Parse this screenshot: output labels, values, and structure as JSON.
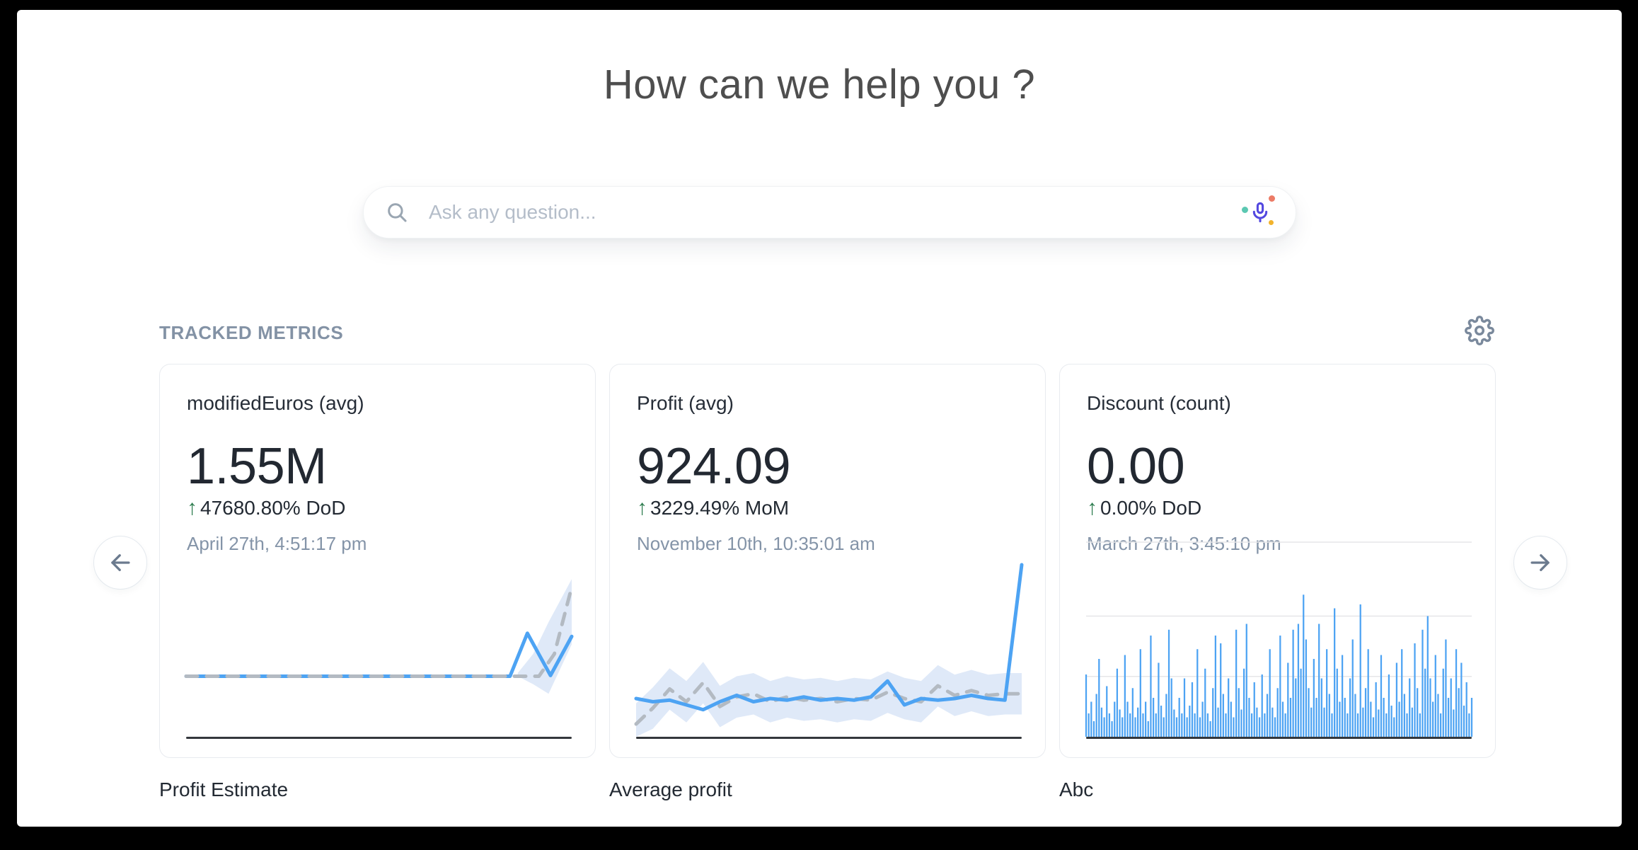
{
  "page": {
    "title": "How can we help you ?"
  },
  "search": {
    "placeholder": "Ask any question...",
    "search_icon": "magnifier",
    "mic_icon": "microphone"
  },
  "tracked_metrics": {
    "label": "TRACKED METRICS",
    "settings_icon": "gear"
  },
  "carousel": {
    "prev_icon": "arrow-left",
    "next_icon": "arrow-right"
  },
  "cards": [
    {
      "title": "modifiedEuros (avg)",
      "value": "1.55M",
      "delta_arrow": "↑",
      "delta": "47680.80% DoD",
      "timestamp": "April 27th, 4:51:17 pm",
      "caption": "Profit Estimate"
    },
    {
      "title": "Profit (avg)",
      "value": "924.09",
      "delta_arrow": "↑",
      "delta": "3229.49% MoM",
      "timestamp": "November 10th, 10:35:01 am",
      "caption": "Average profit"
    },
    {
      "title": "Discount (count)",
      "value": "0.00",
      "delta_arrow": "↑",
      "delta": "0.00% DoD",
      "timestamp": "March 27th, 3:45:10 pm",
      "caption": "Abc"
    }
  ],
  "colors": {
    "accent_blue": "#4da3f3",
    "forecast_gray": "#b3bac2",
    "band_blue": "#dfe9f8",
    "delta_green": "#2e7d4f",
    "axis_dark": "#33373c",
    "grid_gray": "#e6e6e8",
    "mic_purple": "#5348e0",
    "mic_dot_teal": "#5bc8b2",
    "mic_dot_red": "#ec7b66",
    "mic_dot_yellow": "#f2b32c"
  },
  "chart_data": [
    {
      "type": "line",
      "title": "modifiedEuros (avg) sparkline",
      "units": "relative height 0-1, no axis labels shown",
      "series": [
        {
          "name": "actual",
          "style": "solid",
          "color": "#4da3f3",
          "points": [
            [
              0,
              0.38
            ],
            [
              0.4,
              0.38
            ],
            [
              0.84,
              0.38
            ],
            [
              0.885,
              0.65
            ],
            [
              0.945,
              0.385
            ],
            [
              1.0,
              0.63
            ]
          ]
        },
        {
          "name": "forecast",
          "style": "dashed",
          "color": "#b3bac2",
          "points": [
            [
              0,
              0.38
            ],
            [
              0.915,
              0.38
            ],
            [
              0.955,
              0.52
            ],
            [
              1.0,
              0.94
            ]
          ]
        }
      ],
      "band": {
        "x": [
          0.86,
          0.9,
          0.94,
          1.0
        ],
        "upper": [
          0.4,
          0.52,
          0.72,
          0.99
        ],
        "lower": [
          0.38,
          0.33,
          0.27,
          0.58
        ],
        "color": "#dfe9f8"
      },
      "axis_line": true
    },
    {
      "type": "line",
      "title": "Profit (avg) sparkline",
      "units": "relative height 0-1, no axis labels shown",
      "series": [
        {
          "name": "forecast",
          "style": "dashed",
          "color": "#b3bac2",
          "values": [
            0.08,
            0.18,
            0.3,
            0.22,
            0.34,
            0.19,
            0.25,
            0.27,
            0.22,
            0.25,
            0.23,
            0.24,
            0.22,
            0.24,
            0.23,
            0.28,
            0.24,
            0.22,
            0.32,
            0.26,
            0.29,
            0.26,
            0.27,
            0.27
          ]
        },
        {
          "name": "actual",
          "style": "solid",
          "color": "#4da3f3",
          "values": [
            0.24,
            0.22,
            0.23,
            0.2,
            0.17,
            0.22,
            0.26,
            0.22,
            0.24,
            0.23,
            0.25,
            0.23,
            0.24,
            0.23,
            0.25,
            0.35,
            0.2,
            0.24,
            0.23,
            0.24,
            0.26,
            0.24,
            0.23,
            1.08
          ]
        }
      ],
      "band": {
        "upper": [
          0.21,
          0.31,
          0.43,
          0.35,
          0.47,
          0.32,
          0.38,
          0.4,
          0.35,
          0.38,
          0.36,
          0.37,
          0.35,
          0.37,
          0.36,
          0.41,
          0.37,
          0.35,
          0.45,
          0.39,
          0.42,
          0.39,
          0.4,
          0.4
        ],
        "lower": [
          0.0,
          0.05,
          0.17,
          0.09,
          0.21,
          0.06,
          0.12,
          0.14,
          0.09,
          0.12,
          0.1,
          0.11,
          0.09,
          0.11,
          0.1,
          0.15,
          0.11,
          0.09,
          0.19,
          0.13,
          0.16,
          0.13,
          0.14,
          0.14
        ],
        "color": "#dfe9f8"
      },
      "axis_line": true
    },
    {
      "type": "bars",
      "title": "Discount (count) spike chart",
      "units": "relative height 0-1, no axis labels shown",
      "color": "#4da3f3",
      "gridlines_y": [
        0.31,
        0.62,
        1.0
      ],
      "axis_line": true,
      "values": [
        0.32,
        0.12,
        0.18,
        0.08,
        0.22,
        0.4,
        0.15,
        0.1,
        0.26,
        0.12,
        0.08,
        0.18,
        0.35,
        0.14,
        0.1,
        0.42,
        0.18,
        0.12,
        0.25,
        0.1,
        0.15,
        0.45,
        0.12,
        0.18,
        0.08,
        0.52,
        0.2,
        0.12,
        0.38,
        0.16,
        0.1,
        0.22,
        0.55,
        0.3,
        0.14,
        0.1,
        0.2,
        0.12,
        0.3,
        0.1,
        0.16,
        0.28,
        0.12,
        0.45,
        0.1,
        0.18,
        0.35,
        0.12,
        0.08,
        0.25,
        0.52,
        0.15,
        0.48,
        0.22,
        0.12,
        0.3,
        0.18,
        0.1,
        0.55,
        0.25,
        0.14,
        0.35,
        0.58,
        0.2,
        0.12,
        0.28,
        0.15,
        0.1,
        0.32,
        0.12,
        0.22,
        0.45,
        0.15,
        0.1,
        0.25,
        0.52,
        0.18,
        0.12,
        0.38,
        0.2,
        0.55,
        0.3,
        0.58,
        0.35,
        0.73,
        0.5,
        0.25,
        0.15,
        0.4,
        0.2,
        0.58,
        0.3,
        0.15,
        0.45,
        0.22,
        0.12,
        0.66,
        0.35,
        0.18,
        0.42,
        0.2,
        0.12,
        0.3,
        0.5,
        0.22,
        0.12,
        0.68,
        0.15,
        0.25,
        0.45,
        0.18,
        0.1,
        0.28,
        0.14,
        0.42,
        0.2,
        0.12,
        0.32,
        0.16,
        0.1,
        0.38,
        0.18,
        0.45,
        0.22,
        0.12,
        0.3,
        0.15,
        0.48,
        0.25,
        0.12,
        0.55,
        0.35,
        0.62,
        0.3,
        0.18,
        0.42,
        0.22,
        0.12,
        0.35,
        0.5,
        0.2,
        0.3,
        0.14,
        0.45,
        0.25,
        0.38,
        0.16,
        0.28,
        0.12,
        0.2
      ]
    }
  ]
}
